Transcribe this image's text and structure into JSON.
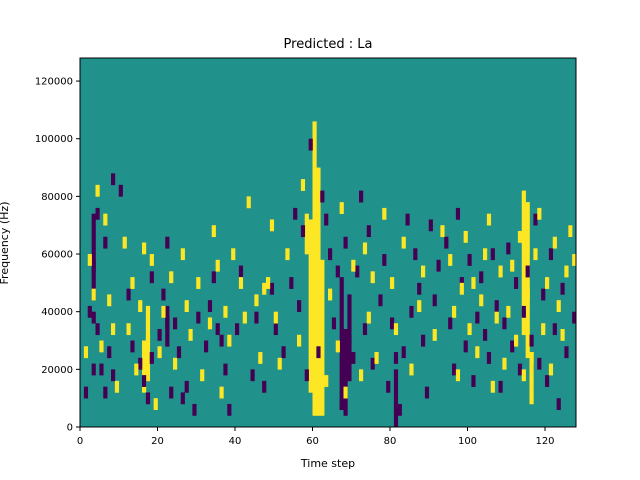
{
  "chart_data": {
    "type": "heatmap",
    "title": "Predicted : La",
    "xlabel": "Time step",
    "ylabel": "Frequency (Hz)",
    "xlim": [
      0,
      128
    ],
    "ylim": [
      0,
      128000
    ],
    "xticks": [
      0,
      20,
      40,
      60,
      80,
      100,
      120
    ],
    "yticks": [
      0,
      20000,
      40000,
      60000,
      80000,
      100000,
      120000
    ],
    "n_time_steps": 128,
    "n_freq_bins": 64,
    "bin_hz": 2000,
    "value_colors": {
      "-1": "#440154",
      "0": "#21918c",
      "1": "#fde725"
    },
    "background_value": 0,
    "cells_low": [
      [
        1,
        5
      ],
      [
        2,
        19
      ],
      [
        3,
        27
      ],
      [
        3,
        9
      ],
      [
        3,
        18
      ],
      [
        4,
        36
      ],
      [
        4,
        16
      ],
      [
        5,
        9
      ],
      [
        6,
        5
      ],
      [
        6,
        31
      ],
      [
        7,
        12
      ],
      [
        8,
        8
      ],
      [
        8,
        42
      ],
      [
        10,
        40
      ],
      [
        12,
        22
      ],
      [
        13,
        13
      ],
      [
        15,
        10
      ],
      [
        16,
        7
      ],
      [
        17,
        4
      ],
      [
        18,
        25
      ],
      [
        18,
        11
      ],
      [
        20,
        15
      ],
      [
        21,
        22
      ],
      [
        22,
        31
      ],
      [
        22,
        17
      ],
      [
        23,
        5
      ],
      [
        24,
        17
      ],
      [
        25,
        12
      ],
      [
        26,
        4
      ],
      [
        27,
        6
      ],
      [
        29,
        2
      ],
      [
        30,
        18
      ],
      [
        32,
        13
      ],
      [
        33,
        20
      ],
      [
        34,
        25
      ],
      [
        35,
        16
      ],
      [
        36,
        14
      ],
      [
        37,
        9
      ],
      [
        38,
        2
      ],
      [
        40,
        16
      ],
      [
        41,
        26
      ],
      [
        44,
        8
      ],
      [
        45,
        18
      ],
      [
        47,
        6
      ],
      [
        49,
        23
      ],
      [
        50,
        16
      ],
      [
        52,
        12
      ],
      [
        54,
        24
      ],
      [
        55,
        36
      ],
      [
        56,
        20
      ],
      [
        57,
        33
      ],
      [
        58,
        8
      ],
      [
        59,
        48
      ],
      [
        61,
        12
      ],
      [
        62,
        39
      ],
      [
        63,
        35
      ],
      [
        64,
        29
      ],
      [
        65,
        17
      ],
      [
        66,
        26
      ],
      [
        67,
        3
      ],
      [
        68,
        31
      ],
      [
        69,
        14
      ],
      [
        70,
        11
      ],
      [
        71,
        26
      ],
      [
        72,
        39
      ],
      [
        73,
        16
      ],
      [
        74,
        33
      ],
      [
        75,
        10
      ],
      [
        77,
        21
      ],
      [
        78,
        28
      ],
      [
        79,
        6
      ],
      [
        80,
        17
      ],
      [
        81,
        11
      ],
      [
        82,
        2
      ],
      [
        83,
        12
      ],
      [
        84,
        35
      ],
      [
        85,
        19
      ],
      [
        86,
        29
      ],
      [
        87,
        23
      ],
      [
        88,
        14
      ],
      [
        89,
        5
      ],
      [
        90,
        34
      ],
      [
        91,
        21
      ],
      [
        92,
        27
      ],
      [
        94,
        31
      ],
      [
        95,
        17
      ],
      [
        96,
        9
      ],
      [
        97,
        36
      ],
      [
        98,
        24
      ],
      [
        99,
        13
      ],
      [
        100,
        28
      ],
      [
        101,
        7
      ],
      [
        102,
        18
      ],
      [
        103,
        25
      ],
      [
        104,
        15
      ],
      [
        105,
        11
      ],
      [
        106,
        29
      ],
      [
        107,
        20
      ],
      [
        108,
        6
      ],
      [
        109,
        17
      ],
      [
        110,
        30
      ],
      [
        111,
        13
      ],
      [
        112,
        24
      ],
      [
        113,
        9
      ],
      [
        114,
        19
      ],
      [
        115,
        26
      ],
      [
        116,
        14
      ],
      [
        117,
        35
      ],
      [
        118,
        10
      ],
      [
        119,
        22
      ],
      [
        120,
        7
      ],
      [
        121,
        29
      ],
      [
        122,
        16
      ],
      [
        123,
        3
      ],
      [
        124,
        23
      ],
      [
        125,
        12
      ],
      [
        126,
        33
      ],
      [
        127,
        18
      ]
    ],
    "cells_high": [
      [
        1,
        12
      ],
      [
        2,
        28
      ],
      [
        3,
        22
      ],
      [
        4,
        40
      ],
      [
        5,
        13
      ],
      [
        6,
        35
      ],
      [
        7,
        21
      ],
      [
        8,
        16
      ],
      [
        9,
        6
      ],
      [
        11,
        31
      ],
      [
        12,
        16
      ],
      [
        13,
        24
      ],
      [
        14,
        9
      ],
      [
        15,
        20
      ],
      [
        16,
        30
      ],
      [
        17,
        14
      ],
      [
        18,
        28
      ],
      [
        19,
        3
      ],
      [
        20,
        12
      ],
      [
        21,
        19
      ],
      [
        23,
        25
      ],
      [
        24,
        10
      ],
      [
        26,
        29
      ],
      [
        27,
        20
      ],
      [
        28,
        15
      ],
      [
        30,
        24
      ],
      [
        31,
        8
      ],
      [
        33,
        17
      ],
      [
        34,
        33
      ],
      [
        35,
        27
      ],
      [
        36,
        5
      ],
      [
        37,
        19
      ],
      [
        38,
        14
      ],
      [
        39,
        29
      ],
      [
        41,
        24
      ],
      [
        42,
        18
      ],
      [
        43,
        38
      ],
      [
        45,
        21
      ],
      [
        46,
        11
      ],
      [
        47,
        23
      ],
      [
        48,
        24
      ],
      [
        49,
        34
      ],
      [
        50,
        18
      ],
      [
        51,
        10
      ],
      [
        53,
        29
      ],
      [
        56,
        14
      ],
      [
        57,
        41
      ],
      [
        63,
        7
      ],
      [
        64,
        22
      ],
      [
        66,
        13
      ],
      [
        67,
        37
      ],
      [
        68,
        5
      ],
      [
        70,
        27
      ],
      [
        72,
        8
      ],
      [
        73,
        30
      ],
      [
        74,
        18
      ],
      [
        75,
        25
      ],
      [
        76,
        11
      ],
      [
        78,
        36
      ],
      [
        80,
        24
      ],
      [
        81,
        16
      ],
      [
        83,
        31
      ],
      [
        85,
        9
      ],
      [
        87,
        20
      ],
      [
        88,
        26
      ],
      [
        91,
        15
      ],
      [
        93,
        33
      ],
      [
        95,
        28
      ],
      [
        96,
        19
      ],
      [
        97,
        8
      ],
      [
        98,
        23
      ],
      [
        99,
        32
      ],
      [
        100,
        16
      ],
      [
        101,
        24
      ],
      [
        102,
        12
      ],
      [
        103,
        21
      ],
      [
        104,
        29
      ],
      [
        105,
        35
      ],
      [
        106,
        6
      ],
      [
        107,
        18
      ],
      [
        108,
        26
      ],
      [
        109,
        10
      ],
      [
        110,
        19
      ],
      [
        111,
        27
      ],
      [
        112,
        14
      ],
      [
        113,
        32
      ],
      [
        114,
        8
      ],
      [
        115,
        22
      ],
      [
        116,
        11
      ],
      [
        117,
        29
      ],
      [
        118,
        36
      ],
      [
        119,
        16
      ],
      [
        120,
        24
      ],
      [
        121,
        9
      ],
      [
        122,
        31
      ],
      [
        123,
        20
      ],
      [
        124,
        15
      ],
      [
        125,
        26
      ],
      [
        126,
        33
      ],
      [
        127,
        28
      ]
    ],
    "bands_high": [
      {
        "t": 59,
        "f_from": 6,
        "f_to": 35
      },
      {
        "t": 60,
        "f_from": 2,
        "f_to": 52
      },
      {
        "t": 61,
        "f_from": 2,
        "f_to": 44
      },
      {
        "t": 62,
        "f_from": 2,
        "f_to": 28
      },
      {
        "t": 58,
        "f_from": 30,
        "f_to": 36
      },
      {
        "t": 114,
        "f_from": 16,
        "f_to": 40
      },
      {
        "t": 115,
        "f_from": 12,
        "f_to": 38
      },
      {
        "t": 116,
        "f_from": 4,
        "f_to": 12
      },
      {
        "t": 16,
        "f_from": 6,
        "f_to": 14
      },
      {
        "t": 17,
        "f_from": 8,
        "f_to": 20
      }
    ],
    "bands_low": [
      {
        "t": 67,
        "f_from": 3,
        "f_to": 25
      },
      {
        "t": 68,
        "f_from": 2,
        "f_to": 16
      },
      {
        "t": 69,
        "f_from": 8,
        "f_to": 22
      },
      {
        "t": 81,
        "f_from": 0,
        "f_to": 9
      },
      {
        "t": 3,
        "f_from": 22,
        "f_to": 36
      },
      {
        "t": 22,
        "f_from": 14,
        "f_to": 20
      }
    ]
  }
}
